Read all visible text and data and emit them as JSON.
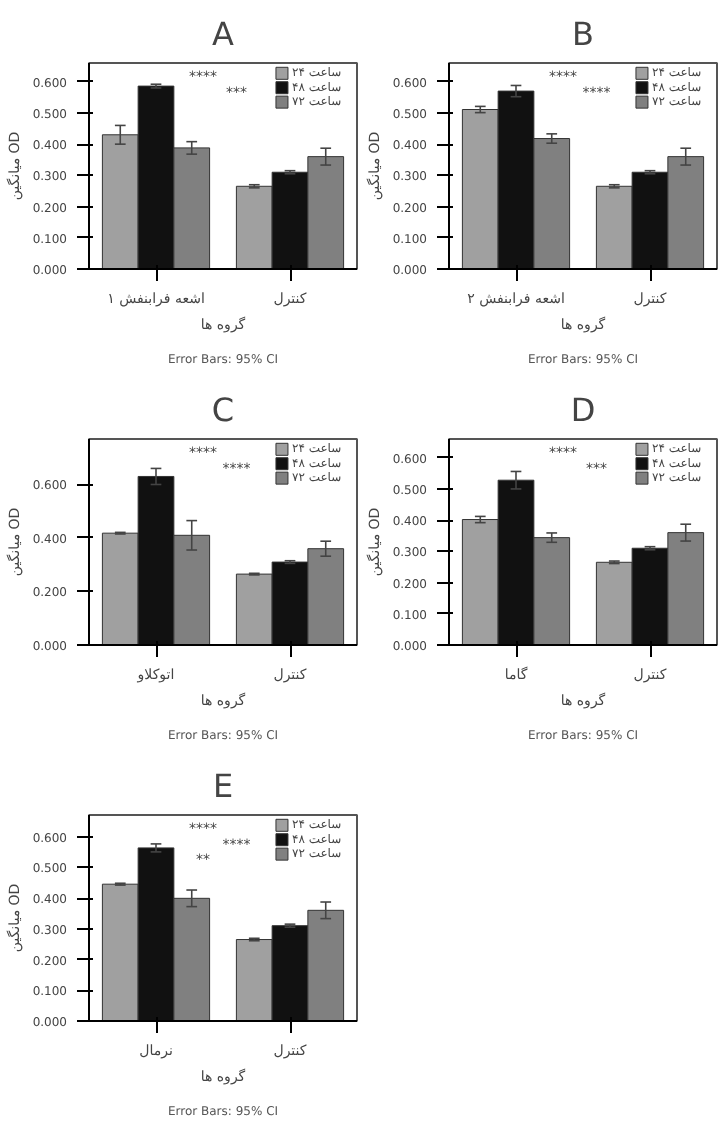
{
  "chart_data": [
    {
      "type": "bar",
      "title": "A",
      "xlabel": "گروه ها",
      "ylabel": "میانگین OD",
      "categories": [
        "اشعه فرابنفش ۱",
        "کنترل"
      ],
      "legend": "right",
      "grid": false,
      "ylim": [
        0,
        0.66
      ],
      "yticks": [
        {
          "value": 0,
          "label": "0.000"
        },
        {
          "value": 0.1,
          "label": "0.100"
        },
        {
          "value": 0.2,
          "label": "0.200"
        },
        {
          "value": 0.3,
          "label": "0.300"
        },
        {
          "value": 0.4,
          "label": "0.400"
        },
        {
          "value": 0.5,
          "label": "0.500"
        },
        {
          "value": 0.6,
          "label": "0.600"
        }
      ],
      "series": [
        {
          "name": "۲۴ ساعت",
          "color": "#a0a0a0",
          "values": [
            0.43,
            0.265
          ],
          "errors": [
            0.03,
            0.005
          ]
        },
        {
          "name": "۴۸ ساعت",
          "color": "#111111",
          "values": [
            0.586,
            0.31
          ],
          "errors": [
            0.006,
            0.005
          ]
        },
        {
          "name": "۷۲ ساعت",
          "color": "#808080",
          "values": [
            0.388,
            0.36
          ],
          "errors": [
            0.02,
            0.027
          ]
        }
      ],
      "annotations": [
        "****",
        "***",
        "Error Bars: 95% CI"
      ]
    },
    {
      "type": "bar",
      "title": "B",
      "xlabel": "گروه ها",
      "ylabel": "میانگین OD",
      "categories": [
        "اشعه فرابنفش ۲",
        "کنترل"
      ],
      "legend": "right",
      "grid": false,
      "ylim": [
        0,
        0.66
      ],
      "yticks": [
        {
          "value": 0,
          "label": "0.000"
        },
        {
          "value": 0.1,
          "label": "0.100"
        },
        {
          "value": 0.2,
          "label": "0.200"
        },
        {
          "value": 0.3,
          "label": "0.300"
        },
        {
          "value": 0.4,
          "label": "0.400"
        },
        {
          "value": 0.5,
          "label": "0.500"
        },
        {
          "value": 0.6,
          "label": "0.600"
        }
      ],
      "series": [
        {
          "name": "۲۴ ساعت",
          "color": "#a0a0a0",
          "values": [
            0.511,
            0.265
          ],
          "errors": [
            0.01,
            0.005
          ]
        },
        {
          "name": "۴۸ ساعت",
          "color": "#111111",
          "values": [
            0.57,
            0.31
          ],
          "errors": [
            0.018,
            0.005
          ]
        },
        {
          "name": "۷۲ ساعت",
          "color": "#808080",
          "values": [
            0.418,
            0.36
          ],
          "errors": [
            0.015,
            0.027
          ]
        }
      ],
      "annotations": [
        "****",
        "****",
        "Error Bars: 95% CI"
      ]
    },
    {
      "type": "bar",
      "title": "C",
      "xlabel": "گروه ها",
      "ylabel": "میانگین OD",
      "categories": [
        "اتوکلاو",
        "کنترل"
      ],
      "legend": "right",
      "grid": false,
      "ylim": [
        0,
        0.77
      ],
      "yticks": [
        {
          "value": 0,
          "label": "0.000"
        },
        {
          "value": 0.2,
          "label": "0.200"
        },
        {
          "value": 0.4,
          "label": "0.400"
        },
        {
          "value": 0.6,
          "label": "0.600"
        }
      ],
      "series": [
        {
          "name": "۲۴ ساعت",
          "color": "#a0a0a0",
          "values": [
            0.418,
            0.265
          ],
          "errors": [
            0.003,
            0.003
          ]
        },
        {
          "name": "۴۸ ساعت",
          "color": "#111111",
          "values": [
            0.63,
            0.31
          ],
          "errors": [
            0.03,
            0.005
          ]
        },
        {
          "name": "۷۲ ساعت",
          "color": "#808080",
          "values": [
            0.41,
            0.36
          ],
          "errors": [
            0.055,
            0.028
          ]
        }
      ],
      "annotations": [
        "****",
        "****",
        "Error Bars: 95% CI"
      ]
    },
    {
      "type": "bar",
      "title": "D",
      "xlabel": "گروه ها",
      "ylabel": "میانگین OD",
      "categories": [
        "گاما",
        "کنترل"
      ],
      "legend": "right",
      "grid": false,
      "ylim": [
        0,
        0.66
      ],
      "yticks": [
        {
          "value": 0,
          "label": "0.000"
        },
        {
          "value": 0.1,
          "label": "0.100"
        },
        {
          "value": 0.2,
          "label": "0.200"
        },
        {
          "value": 0.3,
          "label": "0.300"
        },
        {
          "value": 0.4,
          "label": "0.400"
        },
        {
          "value": 0.5,
          "label": "0.500"
        },
        {
          "value": 0.6,
          "label": "0.600"
        }
      ],
      "series": [
        {
          "name": "۲۴ ساعت",
          "color": "#a0a0a0",
          "values": [
            0.402,
            0.265
          ],
          "errors": [
            0.01,
            0.004
          ]
        },
        {
          "name": "۴۸ ساعت",
          "color": "#111111",
          "values": [
            0.528,
            0.31
          ],
          "errors": [
            0.028,
            0.005
          ]
        },
        {
          "name": "۷۲ ساعت",
          "color": "#808080",
          "values": [
            0.344,
            0.36
          ],
          "errors": [
            0.015,
            0.027
          ]
        }
      ],
      "annotations": [
        "****",
        "***",
        "Error Bars: 95% CI"
      ]
    },
    {
      "type": "bar",
      "title": "E",
      "xlabel": "گروه ها",
      "ylabel": "میانگین OD",
      "categories": [
        "نرمال",
        "کنترل"
      ],
      "legend": "right",
      "grid": false,
      "ylim": [
        0,
        0.67
      ],
      "yticks": [
        {
          "value": 0,
          "label": "0.000"
        },
        {
          "value": 0.1,
          "label": "0.100"
        },
        {
          "value": 0.2,
          "label": "0.200"
        },
        {
          "value": 0.3,
          "label": "0.300"
        },
        {
          "value": 0.4,
          "label": "0.400"
        },
        {
          "value": 0.5,
          "label": "0.500"
        },
        {
          "value": 0.6,
          "label": "0.600"
        }
      ],
      "series": [
        {
          "name": "۲۴ ساعت",
          "color": "#a0a0a0",
          "values": [
            0.445,
            0.265
          ],
          "errors": [
            0.003,
            0.004
          ]
        },
        {
          "name": "۴۸ ساعت",
          "color": "#111111",
          "values": [
            0.563,
            0.31
          ],
          "errors": [
            0.013,
            0.005
          ]
        },
        {
          "name": "۷۲ ساعت",
          "color": "#808080",
          "values": [
            0.399,
            0.36
          ],
          "errors": [
            0.027,
            0.027
          ]
        }
      ],
      "annotations": [
        "****",
        "****",
        "**",
        "Error Bars: 95% CI"
      ]
    }
  ]
}
